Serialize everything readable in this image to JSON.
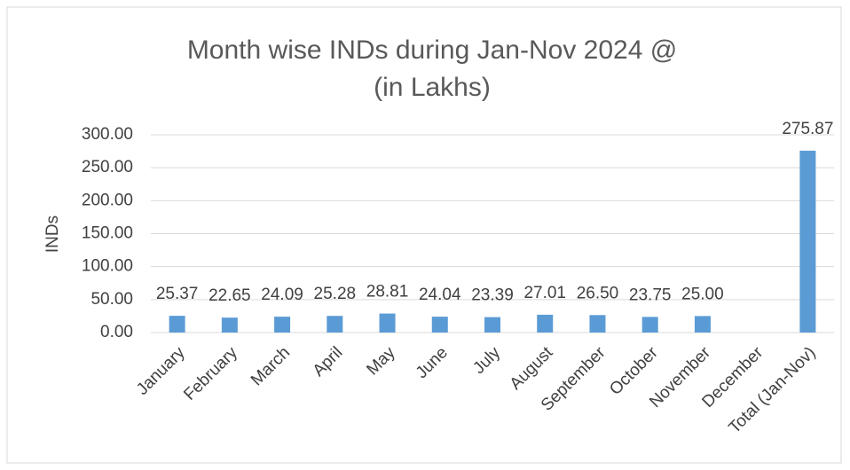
{
  "chart_data": {
    "type": "bar",
    "title": [
      "Month wise INDs during Jan-Nov 2024 @",
      "(in Lakhs)"
    ],
    "y_label": "INDs",
    "categories": [
      "January",
      "February",
      "March",
      "April",
      "May",
      "June",
      "July",
      "August",
      "September",
      "October",
      "November",
      "December",
      "Total (Jan-Nov)"
    ],
    "values": [
      25.37,
      22.65,
      24.09,
      25.28,
      28.81,
      24.04,
      23.39,
      27.01,
      26.5,
      23.75,
      25,
      null,
      275.87
    ],
    "value_labels": [
      "25.37",
      "22.65",
      "24.09",
      "25.28",
      "28.81",
      "24.04",
      "23.39",
      "27.01",
      "26.50",
      "23.75",
      "25.00",
      null,
      "275.87"
    ],
    "color": "#5b9bd5",
    "ylim": [
      0,
      300
    ],
    "yticks": [
      {
        "value": 0,
        "label": "0.00"
      },
      {
        "value": 50,
        "label": "50.00"
      },
      {
        "value": 100,
        "label": "100.00"
      },
      {
        "value": 150,
        "label": "150.00"
      },
      {
        "value": 200,
        "label": "200.00"
      },
      {
        "value": 250,
        "label": "250.00"
      },
      {
        "value": 300,
        "label": "300.00"
      }
    ],
    "grid": true
  }
}
